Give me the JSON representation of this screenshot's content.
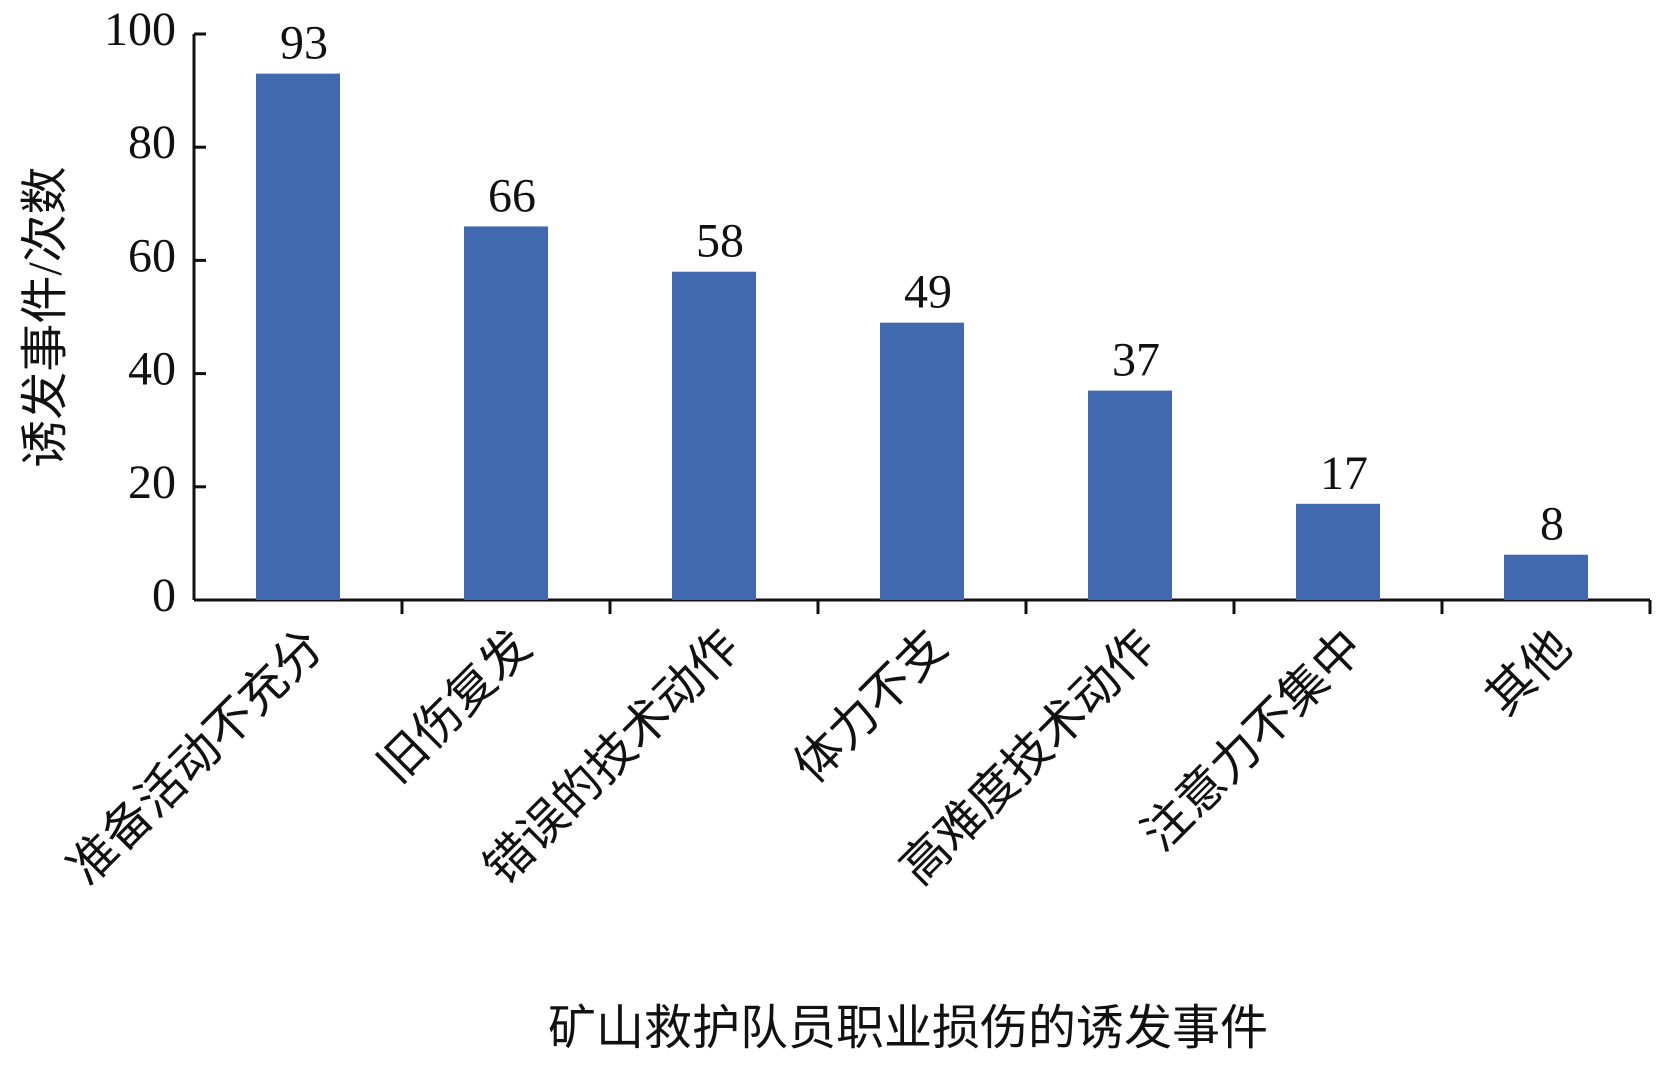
{
  "chart_data": {
    "type": "bar",
    "x_label": "矿山救护队员职业损伤的诱发事件",
    "y_label": "诱发事件/次数",
    "categories": [
      "准备活动不充分",
      "旧伤复发",
      "错误的技术动作",
      "体力不支",
      "高难度技术动作",
      "注意力不集中",
      "其他"
    ],
    "values": [
      93,
      66,
      58,
      49,
      37,
      17,
      8
    ],
    "color": "#4169b0",
    "ylim": [
      0,
      100
    ],
    "yticks": [
      0,
      20,
      40,
      60,
      80,
      100
    ],
    "grid": false
  }
}
